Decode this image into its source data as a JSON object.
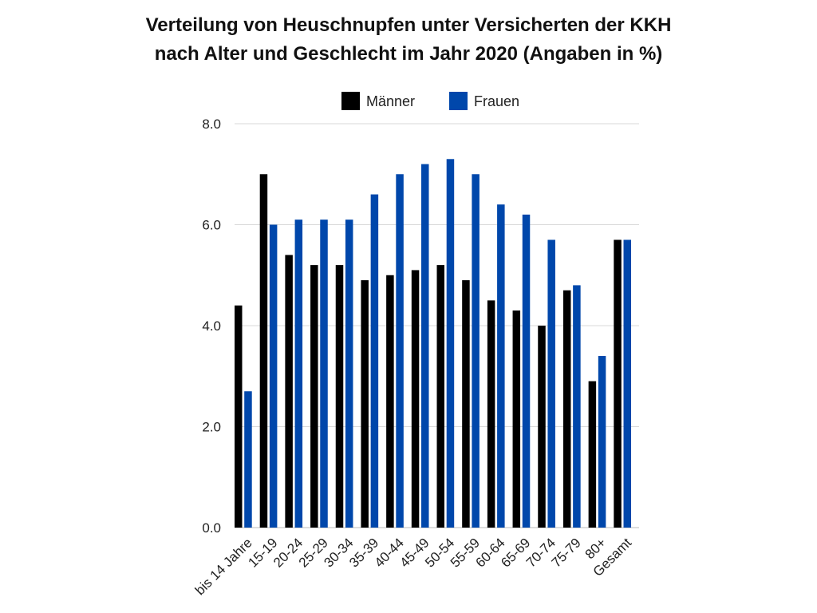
{
  "title": {
    "line1": "Verteilung von Heuschnupfen unter Versicherten der KKH",
    "line2": "nach Alter und Geschlecht im Jahr 2020 (Angaben in %)"
  },
  "colors": {
    "men": "#000000",
    "women": "#0047ab",
    "grid": "#d9d9d9"
  },
  "chart_data": {
    "type": "bar",
    "title": "Verteilung von Heuschnupfen unter Versicherten der KKH nach Alter und Geschlecht im Jahr 2020 (Angaben in %)",
    "xlabel": "",
    "ylabel": "",
    "ylim": [
      0,
      8
    ],
    "yticks": [
      "0.0",
      "2.0",
      "4.0",
      "6.0",
      "8.0"
    ],
    "legend_position": "top-center",
    "grid": true,
    "categories": [
      "bis 14 Jahre",
      "15-19",
      "20-24",
      "25-29",
      "30-34",
      "35-39",
      "40-44",
      "45-49",
      "50-54",
      "55-59",
      "60-64",
      "65-69",
      "70-74",
      "75-79",
      "80+",
      "Gesamt"
    ],
    "series": [
      {
        "name": "Männer",
        "values": [
          4.4,
          7.0,
          5.4,
          5.2,
          5.2,
          4.9,
          5.0,
          5.1,
          5.2,
          4.9,
          4.5,
          4.3,
          4.0,
          4.7,
          2.9,
          5.7
        ]
      },
      {
        "name": "Frauen",
        "values": [
          2.7,
          6.0,
          6.1,
          6.1,
          6.1,
          6.6,
          7.0,
          7.2,
          7.3,
          7.0,
          6.4,
          6.2,
          5.7,
          4.8,
          3.4,
          5.7
        ]
      }
    ]
  }
}
